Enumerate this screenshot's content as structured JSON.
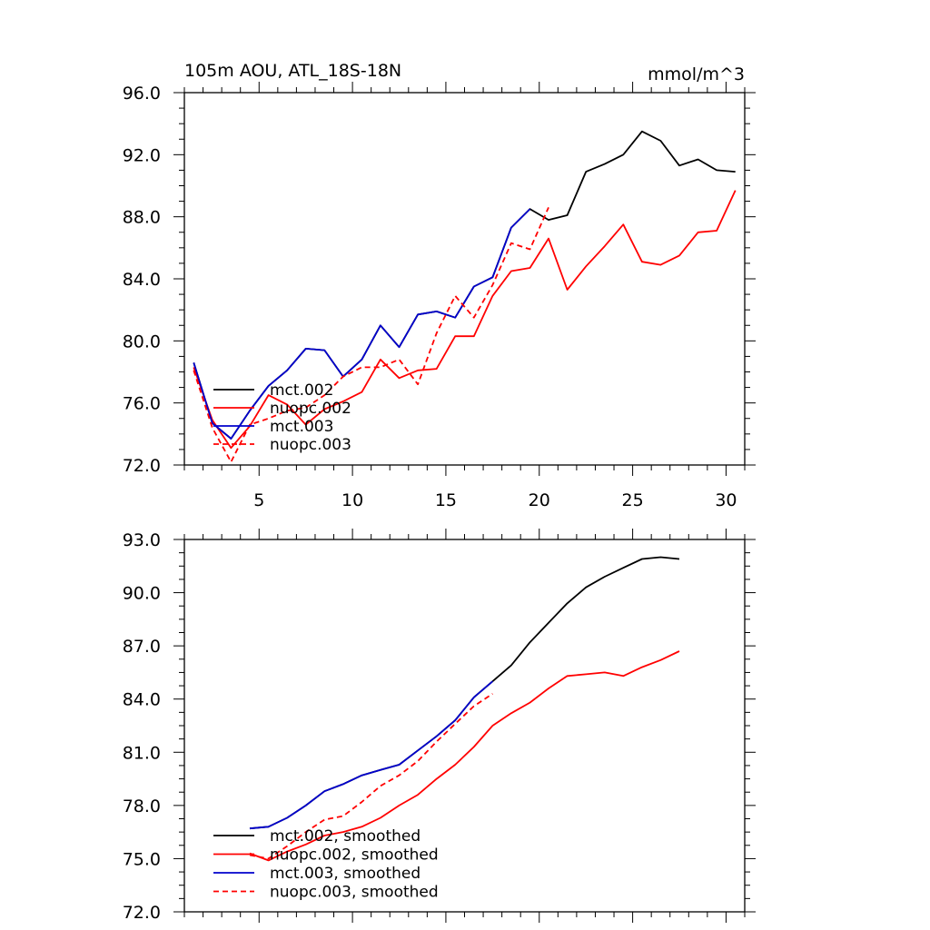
{
  "header": {
    "title": "105m AOU, ATL_18S-18N",
    "units": "mmol/m^3"
  },
  "colors": {
    "mct.002": "#000000",
    "nuopc.002": "#ff0000",
    "mct.003": "#0000cc",
    "nuopc.003": "#ff0000"
  },
  "chart_data": [
    {
      "type": "line",
      "title": "105m AOU, ATL_18S-18N",
      "units": "mmol/m^3",
      "xlim": [
        1,
        31
      ],
      "ylim": [
        72,
        96
      ],
      "x_ticks": [
        5,
        10,
        15,
        20,
        25,
        30
      ],
      "x_tick_labels": [
        "5",
        "10",
        "15",
        "20",
        "25",
        "30"
      ],
      "y_ticks": [
        72,
        76,
        80,
        84,
        88,
        92,
        96
      ],
      "y_tick_labels": [
        "72.0",
        "76.0",
        "80.0",
        "84.0",
        "88.0",
        "92.0",
        "96.0"
      ],
      "legend_position": "bottom-left",
      "series": [
        {
          "name": "mct.002",
          "color": "#000000",
          "dash": "solid",
          "x": [
            1.5,
            2.5,
            3.5,
            4.5,
            5.5,
            6.5,
            7.5,
            8.5,
            9.5,
            10.5,
            11.5,
            12.5,
            13.5,
            14.5,
            15.5,
            16.5,
            17.5,
            18.5,
            19.5,
            20.5,
            21.5,
            22.5,
            23.5,
            24.5,
            25.5,
            26.5,
            27.5,
            28.5,
            29.5,
            30.5
          ],
          "y": [
            78.6,
            74.7,
            73.7,
            75.5,
            77.1,
            78.1,
            79.5,
            79.4,
            77.7,
            78.8,
            81.0,
            79.6,
            81.7,
            81.9,
            81.5,
            83.5,
            84.1,
            87.3,
            88.5,
            87.8,
            88.1,
            90.9,
            91.4,
            92.0,
            93.5,
            92.9,
            91.3,
            91.7,
            91.0,
            90.9
          ]
        },
        {
          "name": "nuopc.002",
          "color": "#ff0000",
          "dash": "solid",
          "x": [
            1.5,
            2.5,
            3.5,
            4.5,
            5.5,
            6.5,
            7.5,
            8.5,
            9.5,
            10.5,
            11.5,
            12.5,
            13.5,
            14.5,
            15.5,
            16.5,
            17.5,
            18.5,
            19.5,
            20.5,
            21.5,
            22.5,
            23.5,
            24.5,
            25.5,
            26.5,
            27.5,
            28.5,
            29.5,
            30.5
          ],
          "y": [
            78.3,
            74.9,
            73.1,
            74.5,
            76.5,
            75.9,
            74.6,
            75.6,
            76.1,
            76.7,
            78.8,
            77.6,
            78.1,
            78.2,
            80.3,
            80.3,
            82.9,
            84.5,
            84.7,
            86.6,
            83.3,
            84.8,
            86.1,
            87.5,
            85.1,
            84.9,
            85.5,
            87.0,
            87.1,
            89.7
          ]
        },
        {
          "name": "mct.003",
          "color": "#0000cc",
          "dash": "solid",
          "x": [
            1.5,
            2.5,
            3.5,
            4.5,
            5.5,
            6.5,
            7.5,
            8.5,
            9.5,
            10.5,
            11.5,
            12.5,
            13.5,
            14.5,
            15.5,
            16.5,
            17.5,
            18.5,
            19.5
          ],
          "y": [
            78.6,
            74.7,
            73.7,
            75.5,
            77.1,
            78.1,
            79.5,
            79.4,
            77.7,
            78.8,
            81.0,
            79.6,
            81.7,
            81.9,
            81.5,
            83.5,
            84.1,
            87.3,
            88.5
          ]
        },
        {
          "name": "nuopc.003",
          "color": "#ff0000",
          "dash": "dashed",
          "x": [
            1.5,
            2.5,
            3.5,
            4.5,
            5.5,
            6.5,
            7.5,
            8.5,
            9.5,
            10.5,
            11.5,
            12.5,
            13.5,
            14.5,
            15.5,
            16.5,
            17.5,
            18.5,
            19.5,
            20.5
          ],
          "y": [
            78.1,
            74.4,
            72.2,
            74.6,
            75.0,
            75.5,
            75.7,
            76.5,
            77.7,
            78.3,
            78.3,
            78.8,
            77.2,
            80.5,
            82.9,
            81.5,
            83.6,
            86.3,
            85.9,
            88.6
          ]
        }
      ]
    },
    {
      "type": "line",
      "xlim": [
        1,
        31
      ],
      "ylim": [
        72,
        93
      ],
      "x_ticks": [
        5,
        10,
        15,
        20,
        25,
        30
      ],
      "y_ticks": [
        72,
        75,
        78,
        81,
        84,
        87,
        90,
        93
      ],
      "y_tick_labels": [
        "72.0",
        "75.0",
        "78.0",
        "81.0",
        "84.0",
        "87.0",
        "90.0",
        "93.0"
      ],
      "legend_position": "bottom-left",
      "series": [
        {
          "name": "mct.002, smoothed",
          "color": "#000000",
          "dash": "solid",
          "x": [
            4.5,
            5.5,
            6.5,
            7.5,
            8.5,
            9.5,
            10.5,
            11.5,
            12.5,
            13.5,
            14.5,
            15.5,
            16.5,
            17.5,
            18.5,
            19.5,
            20.5,
            21.5,
            22.5,
            23.5,
            24.5,
            25.5,
            26.5,
            27.5
          ],
          "y": [
            76.7,
            76.8,
            77.3,
            78.0,
            78.8,
            79.2,
            79.7,
            80.0,
            80.3,
            81.1,
            81.9,
            82.8,
            84.1,
            85.0,
            85.9,
            87.2,
            88.3,
            89.4,
            90.3,
            90.9,
            91.4,
            91.9,
            92.0,
            91.9
          ]
        },
        {
          "name": "nuopc.002, smoothed",
          "color": "#ff0000",
          "dash": "solid",
          "x": [
            4.5,
            5.5,
            6.5,
            7.5,
            8.5,
            9.5,
            10.5,
            11.5,
            12.5,
            13.5,
            14.5,
            15.5,
            16.5,
            17.5,
            18.5,
            19.5,
            20.5,
            21.5,
            22.5,
            23.5,
            24.5,
            25.5,
            26.5,
            27.5
          ],
          "y": [
            75.3,
            74.9,
            75.4,
            75.8,
            76.3,
            76.5,
            76.8,
            77.3,
            78.0,
            78.6,
            79.5,
            80.3,
            81.3,
            82.5,
            83.2,
            83.8,
            84.6,
            85.3,
            85.4,
            85.5,
            85.3,
            85.8,
            86.2,
            86.7
          ]
        },
        {
          "name": "mct.003, smoothed",
          "color": "#0000cc",
          "dash": "solid",
          "x": [
            4.5,
            5.5,
            6.5,
            7.5,
            8.5,
            9.5,
            10.5,
            11.5,
            12.5,
            13.5,
            14.5,
            15.5,
            16.5,
            17.5
          ],
          "y": [
            76.7,
            76.8,
            77.3,
            78.0,
            78.8,
            79.2,
            79.7,
            80.0,
            80.3,
            81.1,
            81.9,
            82.8,
            84.1,
            85.0
          ]
        },
        {
          "name": "nuopc.003, smoothed",
          "color": "#ff0000",
          "dash": "dashed",
          "x": [
            4.5,
            5.5,
            6.5,
            7.5,
            8.5,
            9.5,
            10.5,
            11.5,
            12.5,
            13.5,
            14.5,
            15.5,
            16.5,
            17.5
          ],
          "y": [
            75.2,
            75.0,
            75.7,
            76.5,
            77.2,
            77.4,
            78.2,
            79.1,
            79.7,
            80.5,
            81.6,
            82.6,
            83.6,
            84.3
          ]
        }
      ]
    }
  ]
}
